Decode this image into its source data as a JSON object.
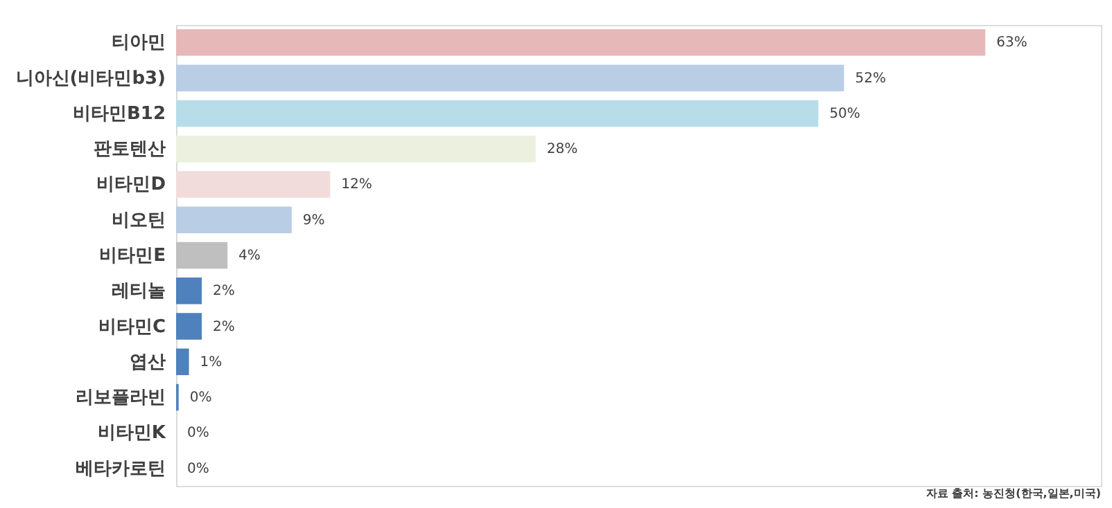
{
  "chart_data": {
    "type": "bar",
    "orientation": "horizontal",
    "categories": [
      "티아민",
      "니아신(비타민b3)",
      "비타민B12",
      "판토텐산",
      "비타민D",
      "비오틴",
      "비타민E",
      "레티놀",
      "비타민C",
      "엽산",
      "리보플라빈",
      "비타민K",
      "베타카로틴"
    ],
    "values": [
      63,
      52,
      50,
      28,
      12,
      9,
      4,
      2,
      2,
      1,
      0.2,
      0,
      0
    ],
    "value_labels": [
      "63%",
      "52%",
      "50%",
      "28%",
      "12%",
      "9%",
      "4%",
      "2%",
      "2%",
      "1%",
      "0%",
      "0%",
      "0%"
    ],
    "colors": [
      "#e6b8b7",
      "#b9cde5",
      "#b7dde8",
      "#ebf1de",
      "#f2dcdb",
      "#b9cde5",
      "#bfbfbf",
      "#4f81bd",
      "#4f81bd",
      "#4f81bd",
      "#4f81bd",
      "#4f81bd",
      "#4f81bd"
    ],
    "xlim": [
      0,
      72
    ],
    "tick_labels": "y",
    "grid": false,
    "annotations": [
      "자료 출처: 농진청(한국,일본,미국)"
    ]
  }
}
